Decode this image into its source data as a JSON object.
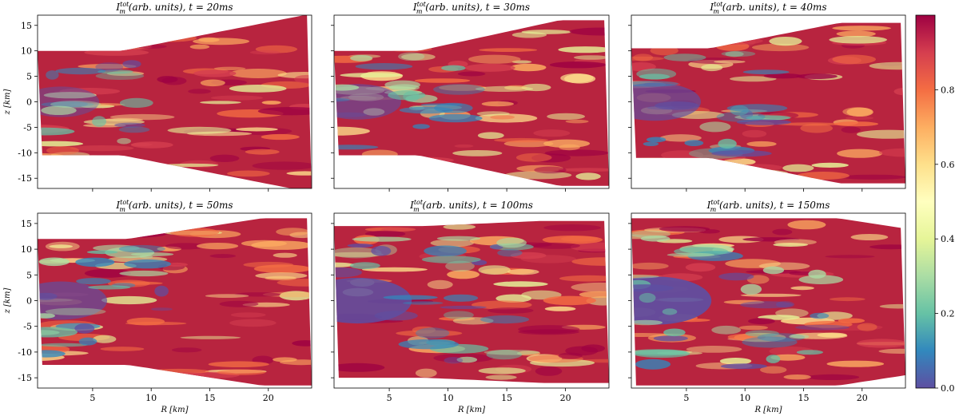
{
  "chart_data": {
    "type": "heatmap",
    "colorbar": {
      "ticks": [
        "0.0",
        "0.2",
        "0.4",
        "0.6",
        "0.8"
      ],
      "range": [
        0,
        1
      ],
      "colormap": "Spectral_r",
      "colors": [
        "#5e4fa2",
        "#3288bd",
        "#66c2a5",
        "#abdda4",
        "#e6f598",
        "#ffffbf",
        "#fee08b",
        "#fdae61",
        "#f46d43",
        "#d53e4f",
        "#9e0142"
      ]
    },
    "x_ticks": [
      "5",
      "10",
      "15",
      "20"
    ],
    "y_ticks": [
      "15",
      "10",
      "5",
      "0",
      "-5",
      "-10",
      "-15"
    ],
    "xlim": [
      0.3,
      23.7
    ],
    "ylim": [
      -17,
      17
    ],
    "panels": [
      {
        "title": "I_m^tot (arb. units), t = 20ms",
        "title_main": "I",
        "title_sub": "m",
        "title_sup": "tot",
        "title_rest": " (arb. units), t = 20ms",
        "t_ms": 20,
        "xlabel": "",
        "ylabel": "z [km]"
      },
      {
        "title": "I_m^tot (arb. units), t = 30ms",
        "title_main": "I",
        "title_sub": "m",
        "title_sup": "tot",
        "title_rest": " (arb. units), t = 30ms",
        "t_ms": 30,
        "xlabel": "",
        "ylabel": ""
      },
      {
        "title": "I_m^tot (arb. units), t = 40ms",
        "title_main": "I",
        "title_sub": "m",
        "title_sup": "tot",
        "title_rest": " (arb. units), t = 40ms",
        "t_ms": 40,
        "xlabel": "",
        "ylabel": ""
      },
      {
        "title": "I_m^tot (arb. units), t = 50ms",
        "title_main": "I",
        "title_sub": "m",
        "title_sup": "tot",
        "title_rest": " (arb. units), t = 50ms",
        "t_ms": 50,
        "xlabel": "R [km]",
        "ylabel": "z [km]"
      },
      {
        "title": "I_m^tot (arb. units), t = 100ms",
        "title_main": "I",
        "title_sub": "m",
        "title_sup": "tot",
        "title_rest": " (arb. units), t = 100ms",
        "t_ms": 100,
        "xlabel": "R [km]",
        "ylabel": ""
      },
      {
        "title": "I_m^tot (arb. units), t = 150ms",
        "title_main": "I",
        "title_sub": "m",
        "title_sup": "tot",
        "title_rest": " (arb. units), t = 150ms",
        "t_ms": 150,
        "xlabel": "R [km]",
        "ylabel": ""
      }
    ]
  }
}
